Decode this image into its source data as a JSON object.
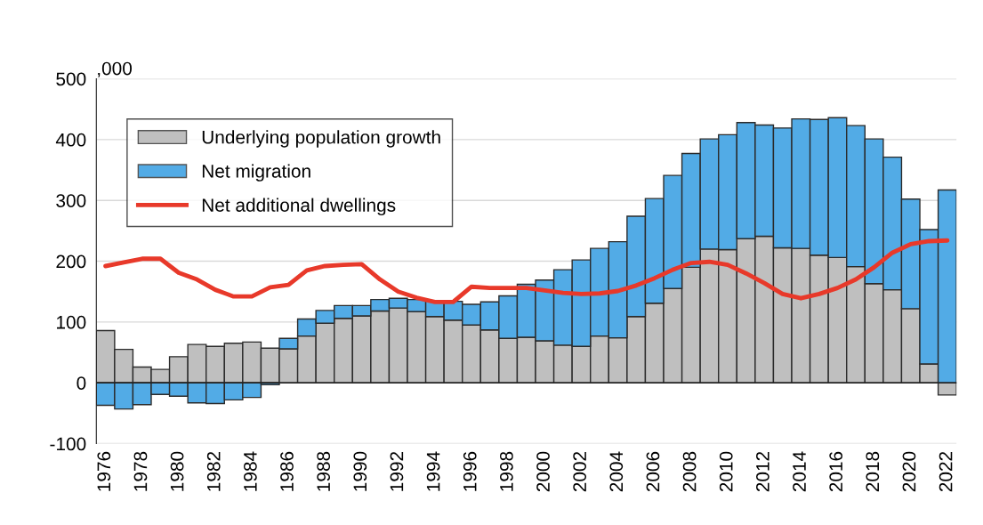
{
  "chart_data": {
    "type": "bar",
    "stacked": true,
    "ylabel": ",000",
    "categories": [
      "1976",
      null,
      "1978",
      null,
      "1980",
      null,
      "1982",
      null,
      "1984",
      null,
      "1986",
      null,
      "1988",
      null,
      "1990",
      null,
      "1992",
      null,
      "1994",
      null,
      "1996",
      null,
      "1998",
      null,
      "2000",
      null,
      "2002",
      null,
      "2004",
      null,
      "2006",
      null,
      "2008",
      null,
      "2010",
      null,
      "2012",
      null,
      "2014",
      null,
      "2016",
      null,
      "2018",
      null,
      "2020",
      null,
      "2022"
    ],
    "series": [
      {
        "name": "Underlying population growth",
        "color": "#bfbfbf",
        "values": [
          86,
          55,
          26,
          22,
          43,
          63,
          60,
          65,
          67,
          57,
          56,
          77,
          98,
          106,
          110,
          118,
          123,
          117,
          109,
          103,
          95,
          87,
          73,
          75,
          69,
          62,
          60,
          77,
          74,
          109,
          131,
          155,
          190,
          220,
          219,
          237,
          241,
          222,
          221,
          210,
          206,
          191,
          163,
          153,
          122,
          31,
          -20
        ]
      },
      {
        "name": "Net migration",
        "color": "#52abe6",
        "values": [
          -37,
          -43,
          -36,
          -19,
          -22,
          -33,
          -34,
          -28,
          -24,
          -3,
          17,
          28,
          21,
          21,
          17,
          19,
          16,
          20,
          26,
          31,
          34,
          46,
          70,
          87,
          100,
          124,
          142,
          144,
          158,
          165,
          172,
          186,
          187,
          181,
          189,
          191,
          183,
          197,
          213,
          223,
          230,
          232,
          238,
          218,
          180,
          221,
          317
        ]
      },
      {
        "name": "Net additional dwellings",
        "type": "line",
        "color": "#e8392a",
        "values": [
          192,
          198,
          204,
          204,
          181,
          170,
          153,
          142,
          142,
          157,
          161,
          185,
          192,
          194,
          195,
          170,
          150,
          140,
          133,
          133,
          158,
          156,
          156,
          156,
          152,
          148,
          146,
          147,
          151,
          160,
          172,
          186,
          197,
          199,
          194,
          180,
          164,
          146,
          139,
          146,
          156,
          170,
          190,
          214,
          228,
          233,
          234
        ]
      }
    ],
    "ylim": [
      -100,
      500
    ],
    "yticks": [
      -100,
      0,
      100,
      200,
      300,
      400,
      500
    ],
    "grid": "y",
    "legend": "top left",
    "marker": "none",
    "line_style": "solid"
  }
}
